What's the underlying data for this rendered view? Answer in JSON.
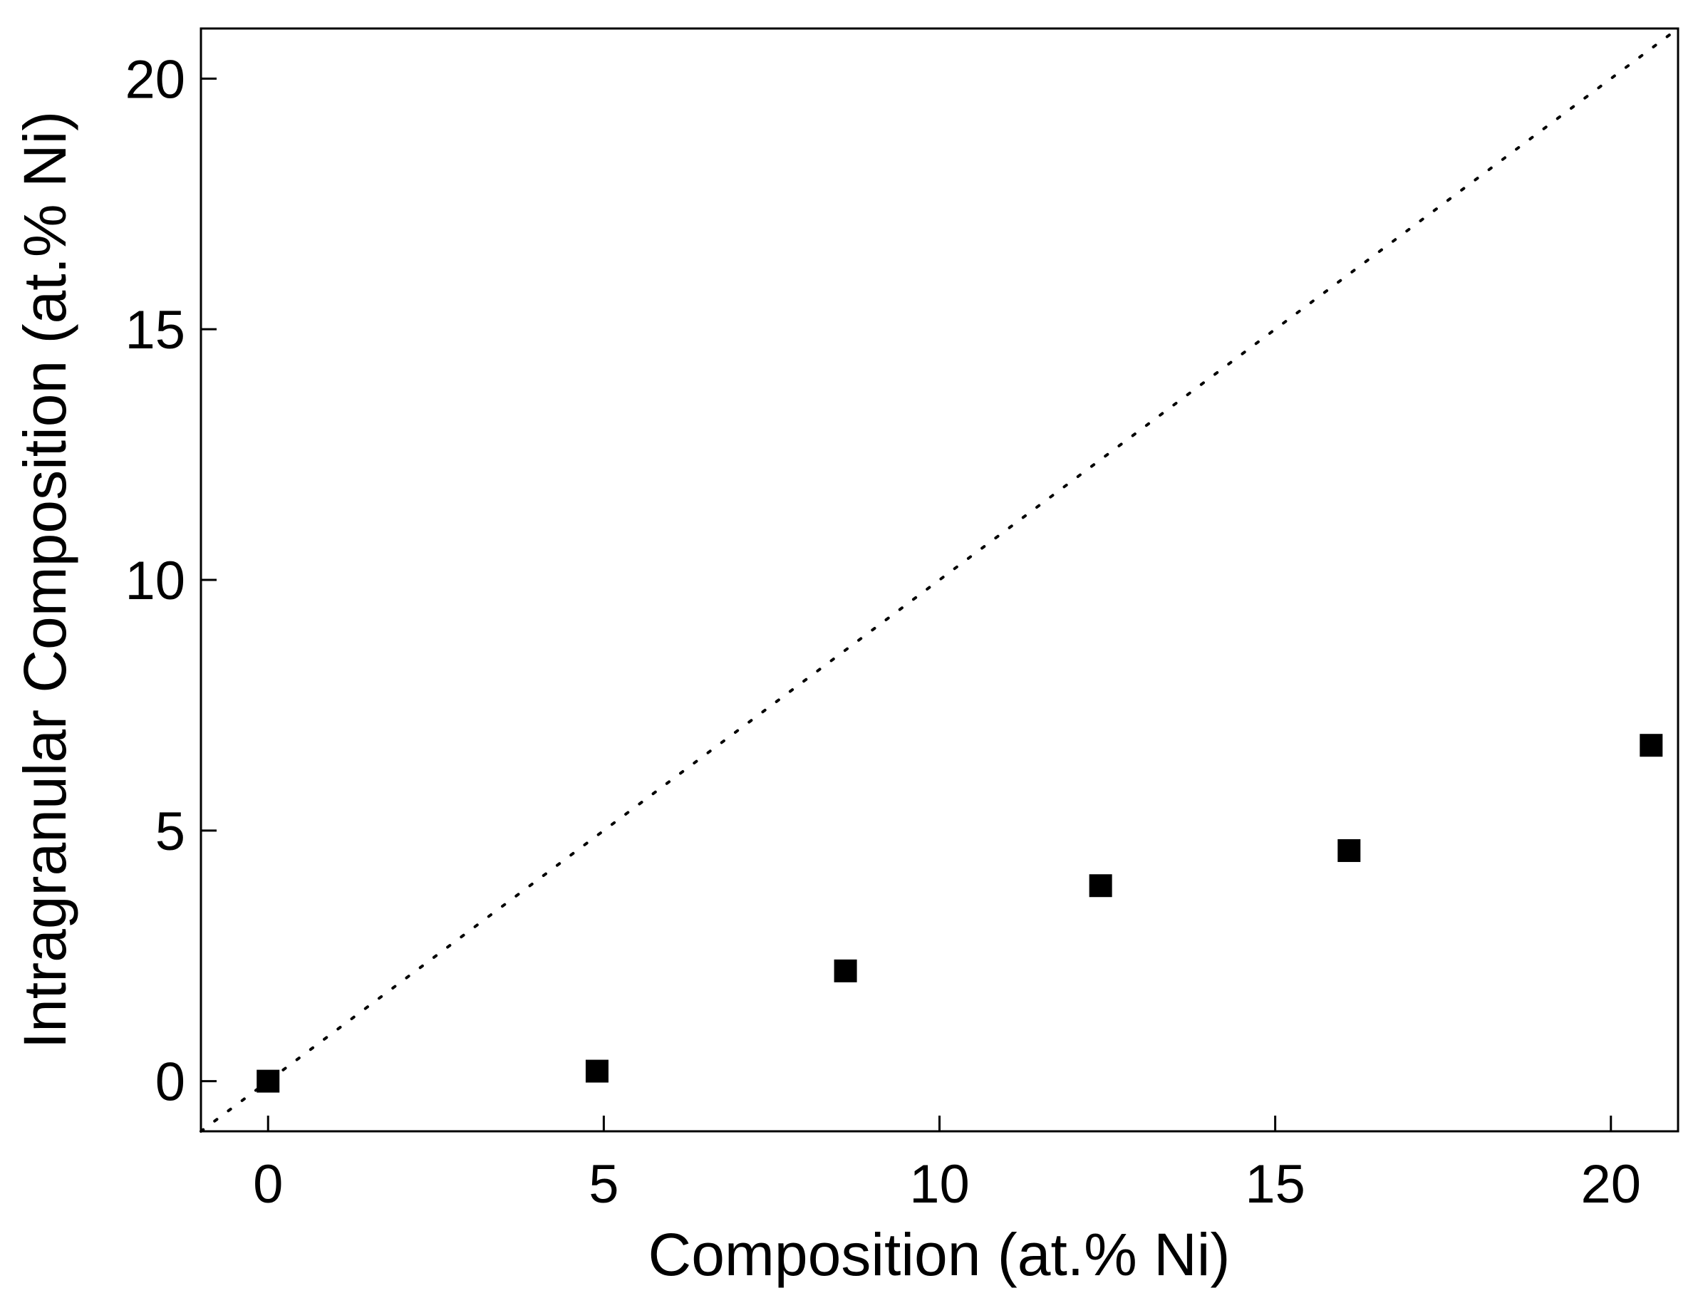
{
  "chart_data": {
    "type": "scatter",
    "title": "",
    "xlabel": "Composition (at.% Ni)",
    "ylabel": "Intragranular Composition (at.% Ni)",
    "xlim": [
      -1,
      21
    ],
    "ylim": [
      -1,
      21
    ],
    "xticks": [
      0,
      5,
      10,
      15,
      20
    ],
    "yticks": [
      0,
      5,
      10,
      15,
      20
    ],
    "grid": false,
    "legend": "none",
    "series": [
      {
        "marker": "square",
        "color": "#000000",
        "x": [
          0,
          4.9,
          8.6,
          12.4,
          16.1,
          20.6
        ],
        "y": [
          0,
          0.2,
          2.2,
          3.9,
          4.6,
          6.7
        ]
      }
    ],
    "reference_line": {
      "style": "dotted",
      "color": "#000000",
      "x": [
        -1,
        21
      ],
      "y": [
        -1,
        21
      ]
    }
  }
}
